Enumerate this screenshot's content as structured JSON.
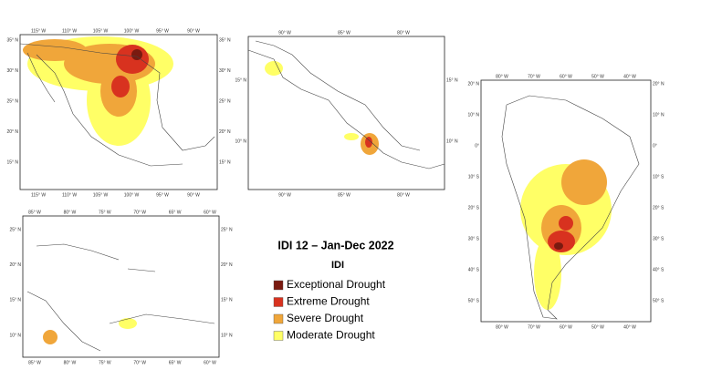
{
  "title": "IDI 12 – Jan-Dec 2022",
  "legend": {
    "title": "IDI",
    "items": [
      {
        "label": "Exceptional Drought",
        "color": "#7a1a10"
      },
      {
        "label": "Extreme Drought",
        "color": "#d8321f"
      },
      {
        "label": "Severe Drought",
        "color": "#f0a63a"
      },
      {
        "label": "Moderate Drought",
        "color": "#ffff66"
      }
    ]
  },
  "maps": [
    {
      "lon_labels": [
        "115° W",
        "110° W",
        "105° W",
        "100° W",
        "95° W",
        "90° W"
      ],
      "lat_labels": [
        "35° N",
        "30° N",
        "25° N",
        "20° N",
        "15° N"
      ]
    },
    {
      "lon_labels": [
        "90° W",
        "85° W",
        "80° W"
      ],
      "lat_labels": [
        "15° N",
        "10° N"
      ]
    },
    {
      "lon_labels": [
        "80° W",
        "70° W",
        "60° W",
        "50° W",
        "40° W"
      ],
      "lat_labels": [
        "20° N",
        "10° N",
        "0°",
        "10° S",
        "20° S",
        "30° S",
        "40° S",
        "50° S"
      ]
    },
    {
      "lon_labels": [
        "85° W",
        "80° W",
        "75° W",
        "70° W",
        "65° W",
        "60° W"
      ],
      "lat_labels": [
        "25° N",
        "20° N",
        "15° N",
        "10° N"
      ]
    }
  ]
}
